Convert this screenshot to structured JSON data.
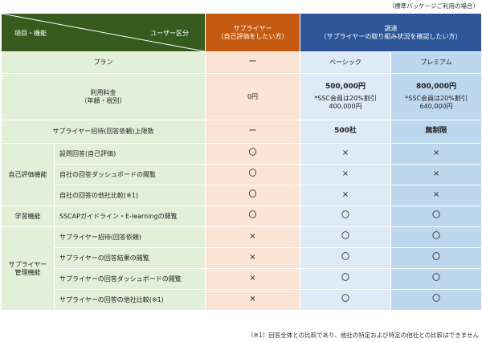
{
  "note_top": "（標準パッケージご利用の場合）",
  "note_bottom": "（※1）回答全体との比較であり、他社の特定および特定の他社との比較はできません",
  "header": {
    "items_label": "項目・機能",
    "user_label": "ユーザー区分",
    "supplier": "サプライヤー\n（自己評価をしたい方）",
    "procurement": "調達\n（サプライヤーの取り組み状況を確認したい方）"
  },
  "rows": {
    "plan": {
      "label": "プラン",
      "supplier": "ー",
      "basic": "ベーシック",
      "premium": "プレミアム"
    },
    "fee": {
      "label": "利用料金\n（年額・税別）",
      "supplier": "0円",
      "basic_main": "500,000円",
      "basic_sub": "*SSC会員は20%割引\n400,000円",
      "premium_main": "800,000円",
      "premium_sub": "*SSC会員は20%割引\n640,000円"
    },
    "limit": {
      "label": "サプライヤー招待(回答依頼)上限数",
      "supplier": "ー",
      "basic": "500社",
      "premium": "無制限"
    }
  },
  "groups": {
    "self_eval": "自己評価機能",
    "learning": "学習機能",
    "supplier_mgmt": "サプライヤー\n管理機能"
  },
  "features": [
    {
      "label": "設問回答(自己評価)",
      "supplier": "〇",
      "basic": "×",
      "premium": "×"
    },
    {
      "label": "自社の回答ダッシュボードの閲覧",
      "supplier": "〇",
      "basic": "×",
      "premium": "×"
    },
    {
      "label": "自社の回答の他社比較(※1)",
      "supplier": "〇",
      "basic": "×",
      "premium": "×"
    },
    {
      "label": "SSCAPガイドライン・E-learningの閲覧",
      "supplier": "〇",
      "basic": "〇",
      "premium": "〇"
    },
    {
      "label": "サプライヤー招待(回答依頼)",
      "supplier": "×",
      "basic": "〇",
      "premium": "〇"
    },
    {
      "label": "サプライヤーの回答結果の閲覧",
      "supplier": "×",
      "basic": "〇",
      "premium": "〇"
    },
    {
      "label": "サプライヤーの回答ダッシュボードの閲覧",
      "supplier": "×",
      "basic": "〇",
      "premium": "〇"
    },
    {
      "label": "サプライヤーの回答の他社比較(※1)",
      "supplier": "×",
      "basic": "〇",
      "premium": "〇"
    }
  ],
  "colors": {
    "header_green": "#375b1f",
    "header_orange": "#c55a11",
    "header_blue": "#2e5597",
    "cell_green": "#e2efd9",
    "cell_orange": "#fbe4d5",
    "cell_blue_light": "#deeaf6",
    "cell_blue": "#bdd7ee"
  }
}
